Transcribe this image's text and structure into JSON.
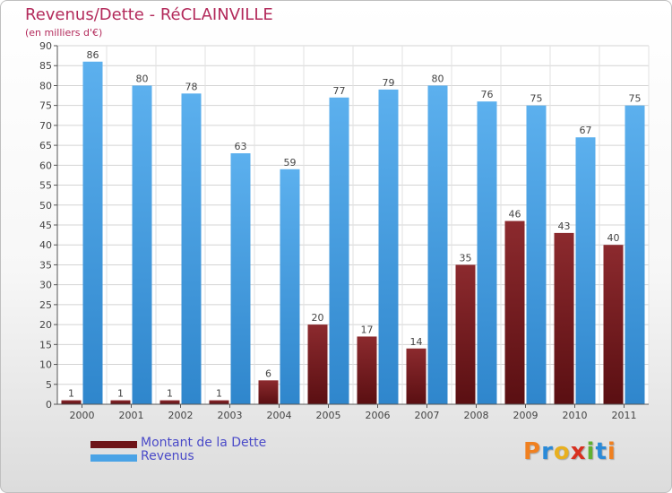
{
  "title": "Revenus/Dette - RéCLAINVILLE",
  "subtitle": "(en milliers d'€)",
  "logo_text": "Proxiti",
  "colors": {
    "title": "#b32a5b",
    "dette": "#7a1f23",
    "revenus": "#4aa3e6",
    "legend_text": "#4a4ac8",
    "logo_letters": [
      "#f08020",
      "#2a8ad8",
      "#e8b020",
      "#d83020",
      "#60b030",
      "#2a8ad8",
      "#f08020"
    ]
  },
  "chart_data": {
    "type": "bar",
    "title": "Revenus/Dette - RéCLAINVILLE",
    "subtitle": "(en milliers d'€)",
    "categories": [
      "2000",
      "2001",
      "2002",
      "2003",
      "2004",
      "2005",
      "2006",
      "2007",
      "2008",
      "2009",
      "2010",
      "2011"
    ],
    "series": [
      {
        "name": "Montant de la Dette",
        "color": "#7a1f23",
        "values": [
          1,
          1,
          1,
          1,
          6,
          20,
          17,
          14,
          35,
          46,
          43,
          40
        ]
      },
      {
        "name": "Revenus",
        "color": "#4aa3e6",
        "values": [
          86,
          80,
          78,
          63,
          59,
          77,
          79,
          80,
          76,
          75,
          67,
          75
        ]
      }
    ],
    "ylim": [
      0,
      90
    ],
    "yticks": [
      0,
      5,
      10,
      15,
      20,
      25,
      30,
      35,
      40,
      45,
      50,
      55,
      60,
      65,
      70,
      75,
      80,
      85,
      90
    ],
    "grid": true,
    "legend_position": "bottom-left"
  }
}
